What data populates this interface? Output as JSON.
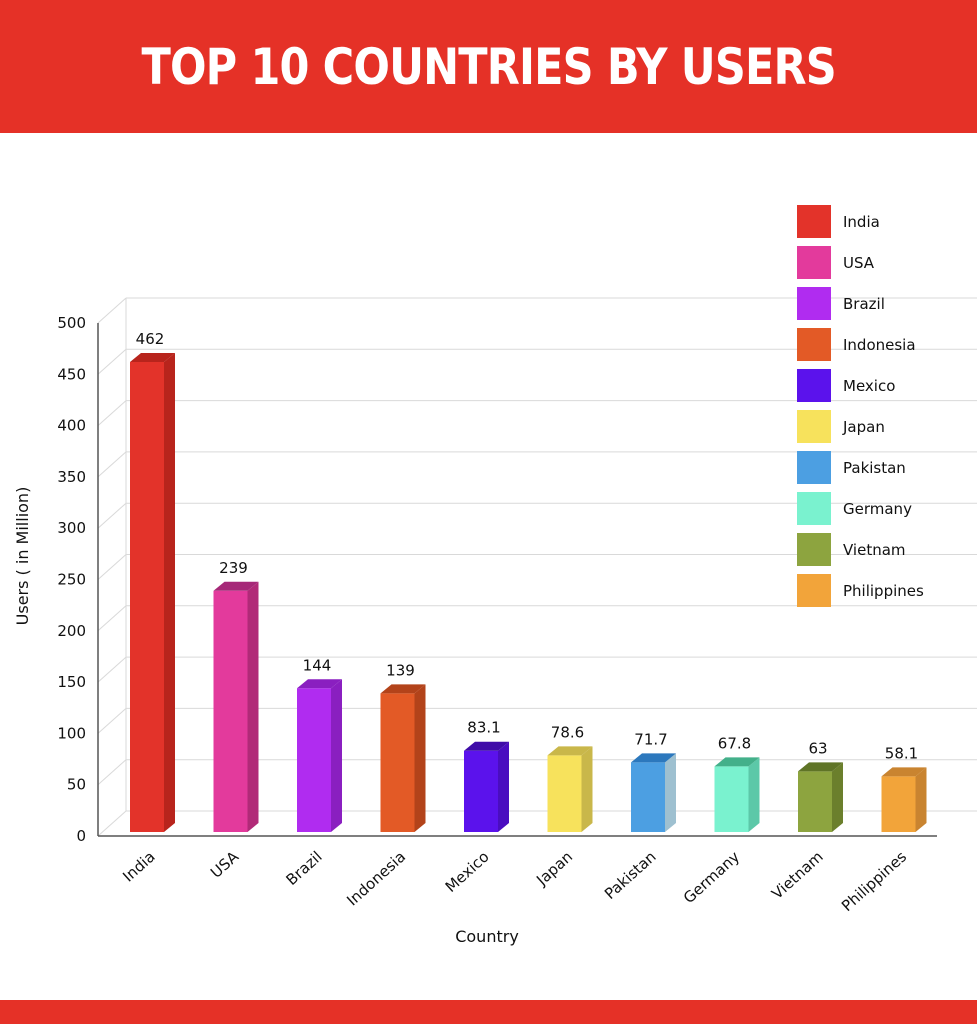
{
  "header": {
    "title": "TOP 10 COUNTRIES BY USERS"
  },
  "colors": {
    "banner": "#e53127"
  },
  "chart_data": {
    "type": "bar",
    "title": "TOP 10 COUNTRIES BY USERS",
    "xlabel": "Country",
    "ylabel": "Users ( in Million)",
    "ylim": [
      0,
      500
    ],
    "yticks": [
      0,
      50,
      100,
      150,
      200,
      250,
      300,
      350,
      400,
      450,
      500
    ],
    "grid": true,
    "legend_position": "top-right",
    "categories": [
      "India",
      "USA",
      "Brazil",
      "Indonesia",
      "Mexico",
      "Japan",
      "Pakistan",
      "Germany",
      "Vietnam",
      "Philippines"
    ],
    "values": [
      462,
      239,
      144,
      139,
      83.1,
      78.6,
      71.7,
      67.8,
      63,
      58.1
    ],
    "value_labels": [
      "462",
      "239",
      "144",
      "139",
      "83.1",
      "78.6",
      "71.7",
      "67.8",
      "63",
      "58.1"
    ],
    "colors": [
      "#e3332a",
      "#e33a9c",
      "#b02cf0",
      "#e35a26",
      "#5b12ec",
      "#f7e25c",
      "#4c9fe2",
      "#7af2cf",
      "#8da43f",
      "#f2a43a"
    ],
    "side_colors": [
      "#b8241c",
      "#b12a78",
      "#8a1fc0",
      "#b3431a",
      "#4a0dc0",
      "#c9b74a",
      "#9ec0d0",
      "#5cc8a8",
      "#6b7f2c",
      "#c98430"
    ],
    "top_colors": [
      "#b8241c",
      "#a62878",
      "#8a1fc0",
      "#b3431a",
      "#3f0ca8",
      "#c9b74a",
      "#2c78bd",
      "#43b08a",
      "#5f7426",
      "#c98430"
    ]
  }
}
